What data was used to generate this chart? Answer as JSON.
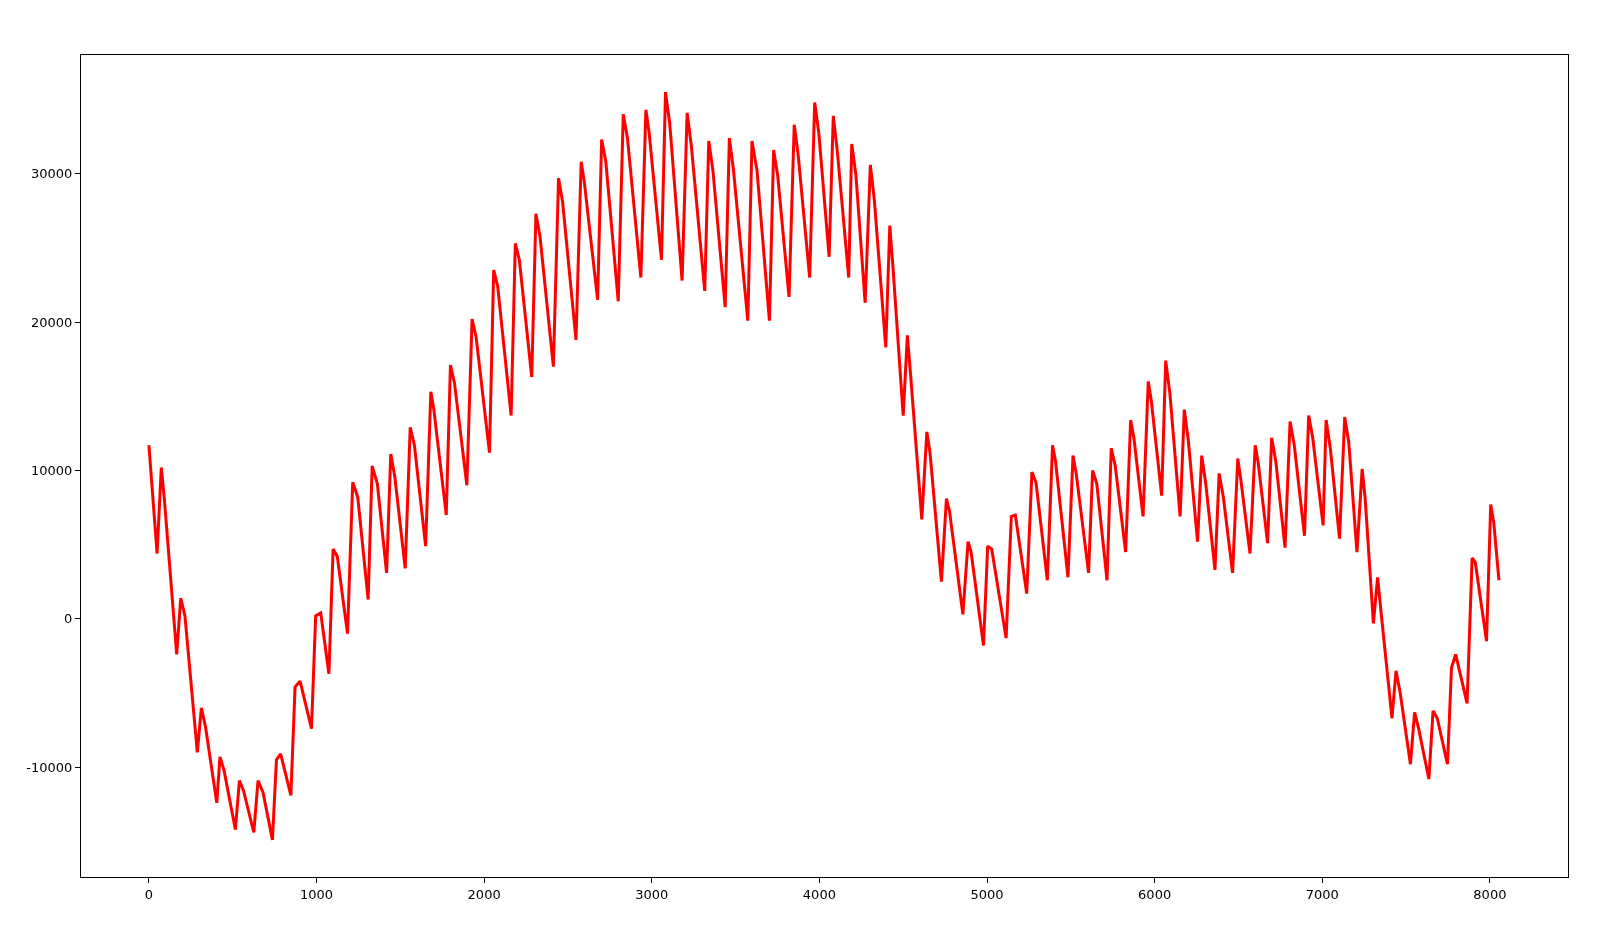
{
  "chart_data": {
    "type": "line",
    "x": [
      0,
      49,
      74,
      92,
      166,
      190,
      215,
      289,
      313,
      338,
      405,
      424,
      448,
      516,
      540,
      565,
      626,
      651,
      681,
      737,
      761,
      786,
      847,
      872,
      902,
      970,
      995,
      1025,
      1074,
      1099,
      1124,
      1185,
      1216,
      1246,
      1308,
      1332,
      1363,
      1418,
      1443,
      1467,
      1529,
      1559,
      1584,
      1651,
      1682,
      1700,
      1774,
      1799,
      1823,
      1897,
      1928,
      1952,
      2032,
      2057,
      2081,
      2161,
      2186,
      2210,
      2284,
      2309,
      2333,
      2413,
      2444,
      2468,
      2548,
      2579,
      2597,
      2677,
      2701,
      2726,
      2800,
      2830,
      2855,
      2935,
      2965,
      2984,
      3058,
      3082,
      3107,
      3181,
      3211,
      3236,
      3316,
      3340,
      3365,
      3438,
      3463,
      3487,
      3573,
      3598,
      3628,
      3702,
      3727,
      3751,
      3819,
      3850,
      3874,
      3942,
      3972,
      3997,
      4058,
      4083,
      4107,
      4175,
      4193,
      4218,
      4273,
      4304,
      4328,
      4396,
      4420,
      4439,
      4500,
      4525,
      4543,
      4611,
      4641,
      4660,
      4728,
      4758,
      4777,
      4856,
      4887,
      4905,
      4979,
      5004,
      5028,
      5114,
      5145,
      5169,
      5237,
      5268,
      5292,
      5360,
      5391,
      5409,
      5483,
      5513,
      5532,
      5606,
      5630,
      5655,
      5716,
      5741,
      5765,
      5827,
      5857,
      5876,
      5931,
      5962,
      5980,
      6042,
      6066,
      6091,
      6152,
      6177,
      6201,
      6256,
      6281,
      6305,
      6360,
      6385,
      6410,
      6465,
      6496,
      6514,
      6569,
      6600,
      6618,
      6674,
      6698,
      6723,
      6778,
      6808,
      6833,
      6894,
      6919,
      6943,
      7005,
      7023,
      7048,
      7103,
      7134,
      7158,
      7207,
      7238,
      7256,
      7305,
      7330,
      7354,
      7416,
      7440,
      7465,
      7526,
      7551,
      7575,
      7636,
      7661,
      7686,
      7747,
      7771,
      7796,
      7864,
      7894,
      7913,
      7980,
      8005,
      8023,
      8054
    ],
    "series": [
      {
        "color": "#ff0000",
        "values": [
          11700,
          4400,
          10200,
          8100,
          -2400,
          1400,
          200,
          -9000,
          -6000,
          -7300,
          -12400,
          -9300,
          -10200,
          -14200,
          -10900,
          -11600,
          -14400,
          -10900,
          -11700,
          -14900,
          -9500,
          -9100,
          -11900,
          -4600,
          -4200,
          -7400,
          200,
          400,
          -3700,
          4700,
          4200,
          -1000,
          9200,
          8200,
          1300,
          10300,
          9100,
          3100,
          11100,
          9600,
          3400,
          12900,
          11700,
          4900,
          15300,
          14100,
          7000,
          17100,
          15900,
          9000,
          20200,
          19000,
          11200,
          23500,
          22400,
          13700,
          25300,
          24200,
          16300,
          27300,
          25800,
          17000,
          29700,
          28100,
          18800,
          30800,
          29500,
          21500,
          32300,
          30800,
          21400,
          34000,
          32400,
          23000,
          34300,
          32800,
          24200,
          35500,
          33400,
          22800,
          34100,
          31900,
          22100,
          32200,
          30200,
          21000,
          32400,
          30300,
          20100,
          32200,
          30200,
          20100,
          31600,
          29900,
          21700,
          33300,
          31200,
          23000,
          34800,
          32700,
          24400,
          33900,
          31500,
          23000,
          32000,
          29900,
          21300,
          30600,
          28200,
          18300,
          26500,
          23700,
          13700,
          19100,
          16600,
          6700,
          12600,
          11200,
          2500,
          8100,
          7200,
          300,
          5200,
          4500,
          -1800,
          4900,
          4700,
          -1300,
          6900,
          7000,
          1700,
          9900,
          9200,
          2600,
          11700,
          10600,
          2800,
          11000,
          9800,
          3100,
          10000,
          9100,
          2600,
          11500,
          10300,
          4500,
          13400,
          12200,
          6900,
          16000,
          14700,
          8300,
          17400,
          15200,
          6900,
          14100,
          12000,
          5200,
          11000,
          9100,
          3300,
          9800,
          8200,
          3100,
          10800,
          9400,
          4400,
          11700,
          10500,
          5100,
          12200,
          10600,
          4800,
          13300,
          11700,
          5600,
          13700,
          12200,
          6300,
          13400,
          11500,
          5400,
          13600,
          11900,
          4500,
          10100,
          8100,
          -300,
          2800,
          100,
          -6700,
          -3500,
          -5000,
          -9800,
          -6300,
          -7400,
          -10800,
          -6200,
          -6700,
          -9800,
          -3300,
          -2400,
          -5700,
          4100,
          3800,
          -1500,
          7700,
          6500,
          2600
        ]
      }
    ],
    "xlim": [
      -405,
      8466
    ],
    "ylim": [
      -17400,
      38000
    ],
    "xticks": [
      0,
      1000,
      2000,
      3000,
      4000,
      5000,
      6000,
      7000,
      8000
    ],
    "yticks": [
      -10000,
      0,
      10000,
      20000,
      30000
    ],
    "marker": "none",
    "line_style": "solid"
  }
}
